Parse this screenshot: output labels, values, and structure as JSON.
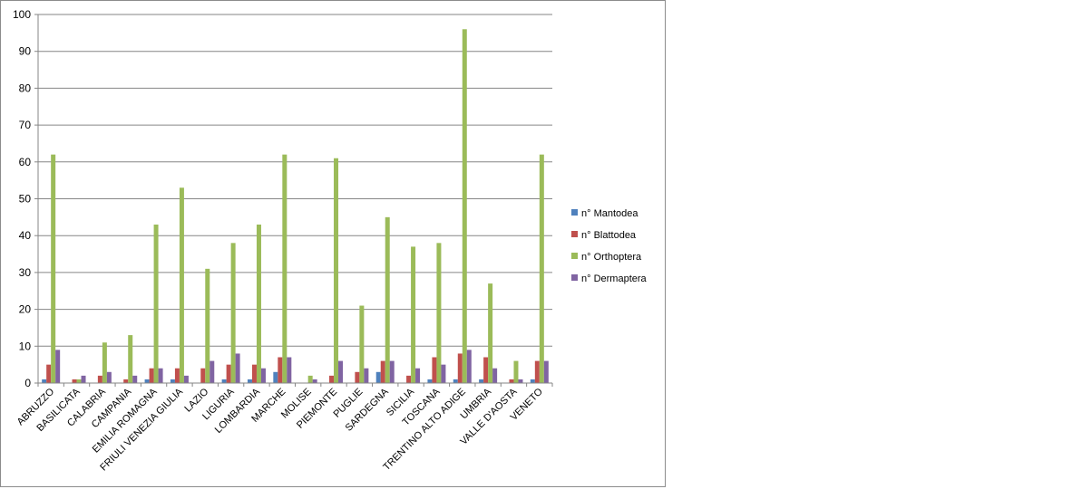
{
  "chart_data": {
    "type": "bar",
    "title": "",
    "xlabel": "",
    "ylabel": "",
    "ylim": [
      0,
      100
    ],
    "yticks": [
      0,
      10,
      20,
      30,
      40,
      50,
      60,
      70,
      80,
      90,
      100
    ],
    "grid": true,
    "legend_position": "right",
    "categories": [
      "ABRUZZO",
      "BASILICATA",
      "CALABRIA",
      "CAMPANIA",
      "EMILIA ROMAGNA",
      "FRIULI VENEZIA GIULIA",
      "LAZIO",
      "LIGURIA",
      "LOMBARDIA",
      "MARCHE",
      "MOLISE",
      "PIEMONTE",
      "PUGLIE",
      "SARDEGNA",
      "SICILIA",
      "TOSCANA",
      "TRENTINO ALTO ADIGE",
      "UMBRIA",
      "VALLE D'AOSTA",
      "VENETO"
    ],
    "series": [
      {
        "name": "n° Mantodea",
        "color": "#4f81bd",
        "values": [
          1,
          0,
          0,
          0,
          1,
          1,
          0,
          1,
          1,
          3,
          0,
          0,
          0,
          3,
          0,
          1,
          1,
          1,
          0,
          1
        ]
      },
      {
        "name": "n° Blattodea",
        "color": "#c0504d",
        "values": [
          5,
          1,
          2,
          1,
          4,
          4,
          4,
          5,
          5,
          7,
          0,
          2,
          3,
          6,
          2,
          7,
          8,
          7,
          1,
          6
        ]
      },
      {
        "name": "n° Orthoptera",
        "color": "#9bbb59",
        "values": [
          62,
          1,
          11,
          13,
          43,
          53,
          31,
          38,
          43,
          62,
          2,
          61,
          21,
          45,
          37,
          38,
          96,
          27,
          6,
          62
        ]
      },
      {
        "name": "n° Dermaptera",
        "color": "#8064a2",
        "values": [
          9,
          2,
          3,
          2,
          4,
          2,
          6,
          8,
          4,
          7,
          1,
          6,
          4,
          6,
          4,
          5,
          9,
          4,
          1,
          6
        ]
      }
    ]
  }
}
